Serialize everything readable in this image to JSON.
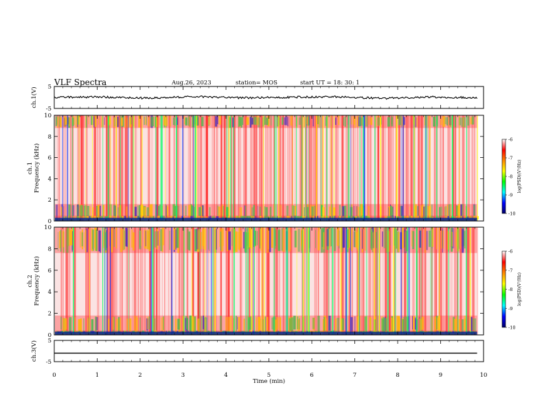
{
  "header": {
    "title": "VLF Spectra",
    "date": "Aug.26, 2023",
    "station": "station= MOS",
    "start_ut": "start UT = 18: 30: 1"
  },
  "colors": {
    "spectrogram_bg": "#ff2a2a",
    "spectrogram_hot": "#ffff00",
    "spectrogram_mid": "#00ff66",
    "spectrogram_low": "#0033ff",
    "colorbar": [
      "#000066",
      "#0000ff",
      "#00ffff",
      "#00ff00",
      "#ffff00",
      "#ff8800",
      "#ff0000",
      "#ffffff"
    ]
  },
  "chart_data": [
    {
      "type": "line",
      "panel": "ch1 waveform",
      "ylabel": "ch.1(V)",
      "ylim": [
        -5,
        5
      ],
      "yticks": [
        "5",
        "-5"
      ],
      "xlim": [
        0,
        10
      ],
      "series": [
        {
          "values": [
            0.1,
            0.2,
            -0.3,
            0.4,
            -0.2,
            0.1,
            0.3,
            -0.4,
            0.2,
            -0.1
          ]
        }
      ]
    },
    {
      "type": "heatmap",
      "panel": "ch1 spectrogram",
      "ylabel": "ch.1 Frequency (kHz)",
      "ylim": [
        0,
        10
      ],
      "yticks": [
        "0",
        "2",
        "4",
        "6",
        "8",
        "10"
      ],
      "xlim": [
        0,
        10
      ],
      "colorbar": {
        "label": "log(PSD)(V²/Hz)",
        "range": [
          -10,
          -6
        ],
        "ticks": [
          "-6",
          "-7",
          "-8",
          "-9",
          "-10"
        ]
      }
    },
    {
      "type": "heatmap",
      "panel": "ch2 spectrogram",
      "ylabel": "ch.2 Frequency (kHz)",
      "ylim": [
        0,
        10
      ],
      "yticks": [
        "0",
        "2",
        "4",
        "6",
        "8",
        "10"
      ],
      "xlim": [
        0,
        10
      ],
      "colorbar": {
        "label": "log(PSD)(V²/Hz)",
        "range": [
          -10,
          -6
        ],
        "ticks": [
          "-6",
          "-7",
          "-8",
          "-9",
          "-10"
        ]
      }
    },
    {
      "type": "line",
      "panel": "ch3 waveform",
      "ylabel": "ch.3(V)",
      "ylim": [
        -5,
        5
      ],
      "yticks": [
        "5",
        "-5"
      ],
      "xlim": [
        0,
        10
      ],
      "series": [
        {
          "values": [
            -1,
            -1,
            -1,
            -1,
            -1,
            -1,
            -1,
            -1,
            -1,
            -1
          ]
        }
      ]
    }
  ],
  "xaxis": {
    "label": "Time (min)",
    "ticks": [
      "0",
      "1",
      "2",
      "3",
      "4",
      "5",
      "6",
      "7",
      "8",
      "9",
      "10"
    ]
  }
}
